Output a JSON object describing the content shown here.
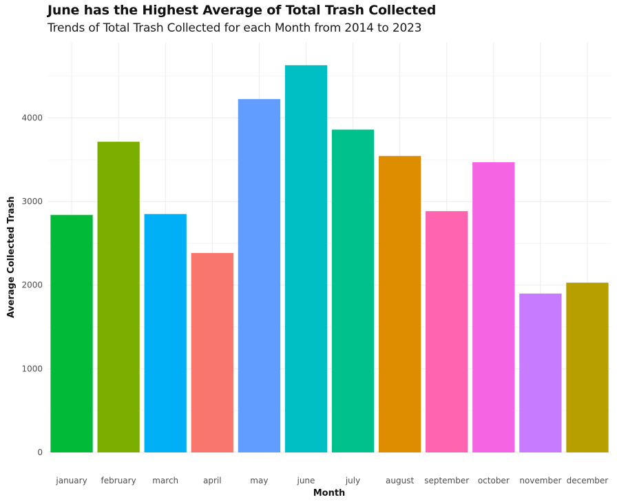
{
  "chart_data": {
    "type": "bar",
    "title": "June has the Highest Average of Total Trash Collected",
    "subtitle": "Trends of Total Trash Collected for each Month from 2014 to 2023",
    "xlabel": "Month",
    "ylabel": "Average Collected Trash",
    "categories": [
      "january",
      "february",
      "march",
      "april",
      "may",
      "june",
      "july",
      "august",
      "september",
      "october",
      "november",
      "december"
    ],
    "values": [
      2840,
      3715,
      2850,
      2385,
      4225,
      4630,
      3860,
      3545,
      2885,
      3470,
      1900,
      2030
    ],
    "colors": [
      "#00BA38",
      "#7CAE00",
      "#00B0F6",
      "#F8766D",
      "#619CFF",
      "#00BFC4",
      "#00C08B",
      "#DE8C00",
      "#FF64B0",
      "#F564E3",
      "#C77CFF",
      "#B79F00"
    ],
    "ylim": [
      0,
      4900
    ],
    "yticks": [
      0,
      1000,
      2000,
      3000,
      4000
    ],
    "grid": true,
    "legend": "none"
  }
}
